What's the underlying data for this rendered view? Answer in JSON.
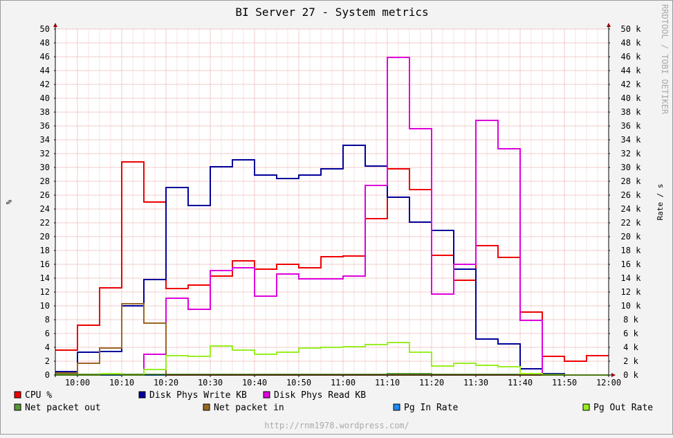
{
  "chart_data": {
    "type": "line",
    "title": "BI Server 27 - System metrics",
    "ylabel_left": "%",
    "ylabel_right": "Rate / s",
    "watermark": "RRDTOOL / TOBI OETIKER",
    "footer": "http://rnm1978.wordpress.com/",
    "ylim": [
      0,
      50
    ],
    "yticks": [
      0,
      2,
      4,
      6,
      8,
      10,
      12,
      14,
      16,
      18,
      20,
      22,
      24,
      26,
      28,
      30,
      32,
      34,
      36,
      38,
      40,
      42,
      44,
      46,
      48,
      50
    ],
    "right_ytick_labels": [
      "0 k",
      "2 k",
      "4 k",
      "6 k",
      "8 k",
      "10 k",
      "12 k",
      "14 k",
      "16 k",
      "18 k",
      "20 k",
      "22 k",
      "24 k",
      "26 k",
      "28 k",
      "30 k",
      "32 k",
      "34 k",
      "36 k",
      "38 k",
      "40 k",
      "42 k",
      "44 k",
      "46 k",
      "48 k",
      "50 k"
    ],
    "left_ytick_labels": [
      "0",
      "2",
      "4",
      "6",
      "8",
      "10",
      "12",
      "14",
      "16",
      "18",
      "20",
      "22",
      "24",
      "26",
      "28",
      "30",
      "32",
      "34",
      "36",
      "38",
      "40",
      "42",
      "44",
      "46",
      "48",
      "50"
    ],
    "xlim": [
      "09:55",
      "12:00"
    ],
    "xtick_labels": [
      "10:00",
      "10:10",
      "10:20",
      "10:30",
      "10:40",
      "10:50",
      "11:00",
      "11:10",
      "11:20",
      "11:30",
      "11:40",
      "11:50",
      "12:00"
    ],
    "step_minutes": 5,
    "series": [
      {
        "name": "CPU %",
        "color": "#ee0000",
        "values": [
          3.6,
          7.2,
          12.6,
          30.8,
          25.0,
          12.5,
          13.0,
          14.3,
          16.5,
          15.3,
          16.0,
          15.5,
          17.1,
          17.2,
          22.6,
          29.8,
          26.8,
          17.3,
          13.7,
          18.7,
          17.0,
          9.1,
          2.7,
          2.0,
          2.8
        ]
      },
      {
        "name": "Disk Phys Write KB",
        "color": "#000099",
        "values": [
          0.5,
          3.3,
          3.4,
          10.0,
          13.8,
          27.1,
          24.5,
          30.1,
          31.1,
          28.9,
          28.4,
          28.9,
          29.8,
          33.2,
          30.2,
          25.7,
          22.1,
          20.9,
          15.3,
          5.2,
          4.5,
          0.9,
          0.2,
          0,
          0
        ]
      },
      {
        "name": "Disk Phys Read KB",
        "color": "#dd00dd",
        "values": [
          0,
          0,
          0,
          0,
          3.0,
          11.1,
          9.5,
          15.1,
          15.5,
          11.4,
          14.6,
          13.9,
          13.9,
          14.3,
          27.4,
          45.9,
          35.6,
          11.7,
          16.0,
          36.8,
          32.7,
          7.9,
          0.1,
          0,
          0
        ]
      },
      {
        "name": "Pg In Rate",
        "color": "#2288ee",
        "values": [
          0,
          0,
          0,
          0,
          0,
          0,
          0,
          0,
          0,
          0,
          0,
          0,
          0,
          0,
          0,
          0,
          0,
          0,
          0,
          0,
          0,
          0,
          0,
          0,
          0
        ]
      },
      {
        "name": "Net packet out",
        "color": "#559933",
        "values": [
          0.1,
          0.1,
          0.1,
          0.1,
          0.1,
          0.1,
          0.1,
          0.1,
          0.1,
          0.1,
          0.1,
          0.1,
          0.1,
          0.1,
          0.1,
          0.2,
          0.2,
          0.1,
          0.1,
          0.1,
          0.1,
          0.1,
          0.1,
          0,
          0
        ]
      },
      {
        "name": "Net packet in",
        "color": "#996622",
        "values": [
          0.3,
          1.7,
          3.9,
          10.3,
          7.5,
          0,
          0,
          0,
          0,
          0,
          0,
          0,
          0,
          0,
          0,
          0,
          0,
          0,
          0,
          0,
          0,
          0,
          0,
          0,
          0
        ]
      },
      {
        "name": "Pg Out Rate",
        "color": "#99ee22",
        "values": [
          0,
          0,
          0.2,
          0,
          0.8,
          2.8,
          2.7,
          4.2,
          3.6,
          3.0,
          3.3,
          3.9,
          4.0,
          4.1,
          4.4,
          4.7,
          3.3,
          1.3,
          1.7,
          1.4,
          1.2,
          0.2,
          0,
          0,
          0
        ]
      }
    ],
    "legend": {
      "placement": "bottom",
      "rows": [
        [
          "CPU %",
          "Disk Phys Write KB",
          "Disk Phys Read KB"
        ],
        [
          "Net packet out",
          "Net packet in",
          "Pg In Rate",
          "Pg Out Rate"
        ]
      ]
    },
    "grid": true
  }
}
